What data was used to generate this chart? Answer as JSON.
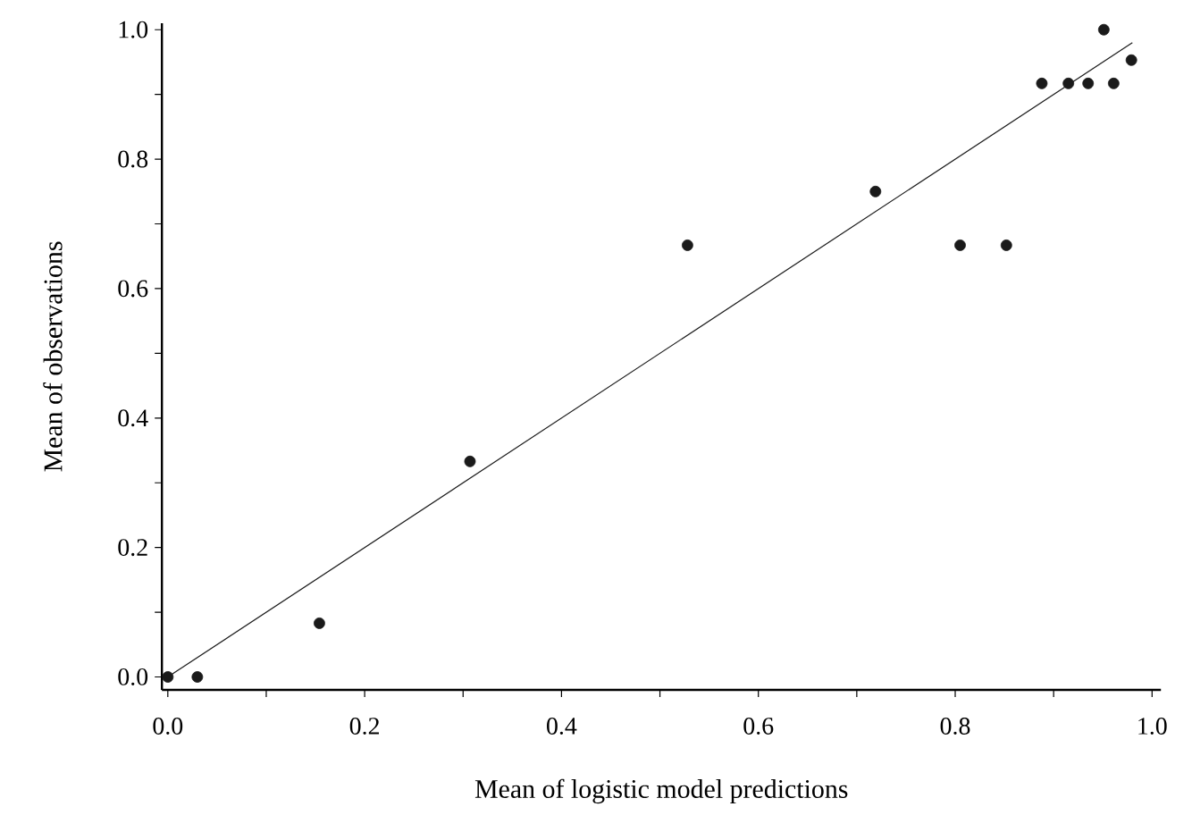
{
  "chart_data": {
    "type": "scatter",
    "xlabel": "Mean of logistic model predictions",
    "ylabel": "Mean of observations",
    "marker": "circle",
    "grid": false,
    "x": [
      0.0,
      0.03,
      0.154,
      0.307,
      0.528,
      0.719,
      0.805,
      0.852,
      0.888,
      0.915,
      0.935,
      0.961,
      0.951,
      0.979
    ],
    "series": [
      {
        "color": "#1a1a1a",
        "values": [
          0.0,
          0.0,
          0.083,
          0.333,
          0.667,
          0.75,
          0.667,
          0.667,
          0.917,
          0.917,
          0.917,
          0.917,
          1.0,
          0.953
        ]
      },
      {
        "type": "line",
        "color": "#1a1a1a",
        "marker": "none",
        "x": [
          0.0,
          0.98
        ],
        "values": [
          0.0,
          0.98
        ]
      }
    ],
    "xlim": [
      -0.006,
      1.009
    ],
    "ylim": [
      -0.02,
      1.01
    ],
    "xticks": [
      {
        "value": 0,
        "label": "0.0"
      },
      {
        "value": 0.1,
        "label": null
      },
      0.2,
      {
        "value": 0.3,
        "label": null
      },
      0.4,
      {
        "value": 0.5,
        "label": null
      },
      0.6,
      {
        "value": 0.7,
        "label": null
      },
      0.8,
      {
        "value": 0.9,
        "label": null
      },
      {
        "value": 1,
        "label": "1.0"
      }
    ],
    "yticks": [
      {
        "value": 0,
        "label": "0.0"
      },
      {
        "value": 0.1,
        "label": null
      },
      0.2,
      {
        "value": 0.3,
        "label": null
      },
      0.4,
      {
        "value": 0.5,
        "label": null
      },
      0.6,
      {
        "value": 0.7,
        "label": null
      },
      0.8,
      {
        "value": 0.9,
        "label": null
      },
      {
        "value": 1,
        "label": "1.0"
      }
    ]
  }
}
